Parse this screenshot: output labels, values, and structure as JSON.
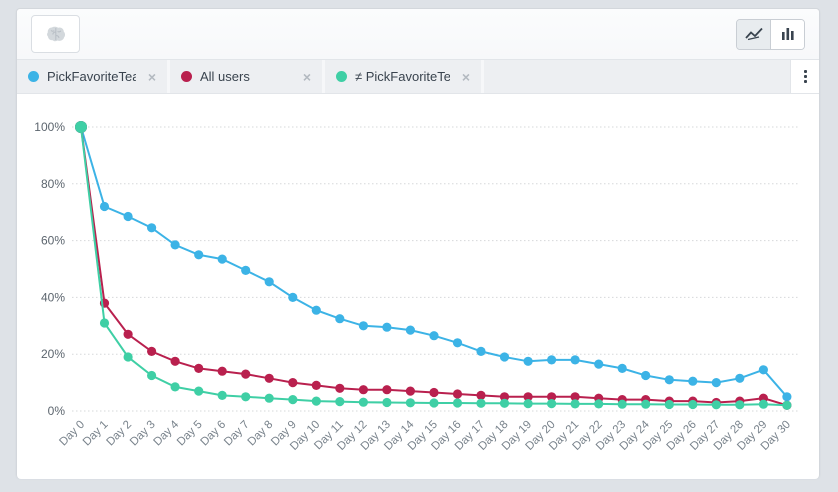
{
  "toolbar": {
    "brain_button_tooltip": "insights",
    "chart_type": {
      "selected": "line",
      "options": [
        "line-chart",
        "bar-chart"
      ]
    }
  },
  "icons": {
    "close": "×"
  },
  "colors": {
    "blue": "#3cb3e6",
    "crimson": "#b9204e",
    "green": "#3fcfa5",
    "grid": "#d6d8da",
    "y_tick_text": "#5c656e",
    "x_tick_text": "#78828b"
  },
  "filter_chips": [
    {
      "label": "PickFavoriteTeam",
      "color": "#3cb3e6"
    },
    {
      "label": "All users",
      "color": "#b9204e"
    },
    {
      "label": "≠ PickFavoriteTeam...",
      "color": "#3fcfa5"
    }
  ],
  "chart_data": {
    "type": "line",
    "title": "",
    "xlabel": "",
    "ylabel": "",
    "ylim": [
      0,
      100
    ],
    "grid": "dotted-horizontal",
    "legend_position": "chips-top",
    "y_tick_values": [
      0,
      20,
      40,
      60,
      80,
      100
    ],
    "y_tick_labels": [
      "0%",
      "20%",
      "40%",
      "60%",
      "80%",
      "100%"
    ],
    "categories": [
      "Day 0",
      "Day 1",
      "Day 2",
      "Day 3",
      "Day 4",
      "Day 5",
      "Day 6",
      "Day 7",
      "Day 8",
      "Day 9",
      "Day 10",
      "Day 11",
      "Day 12",
      "Day 13",
      "Day 14",
      "Day 15",
      "Day 16",
      "Day 17",
      "Day 18",
      "Day 19",
      "Day 20",
      "Day 21",
      "Day 22",
      "Day 23",
      "Day 24",
      "Day 25",
      "Day 26",
      "Day 27",
      "Day 28",
      "Day 29",
      "Day 30"
    ],
    "series": [
      {
        "name": "PickFavoriteTeam",
        "color": "#3cb3e6",
        "values": [
          100,
          72,
          68.5,
          64.5,
          58.5,
          55,
          53.5,
          49.5,
          45.5,
          40,
          35.5,
          32.5,
          30,
          29.5,
          28.5,
          26.5,
          24,
          21,
          19,
          17.5,
          18,
          18,
          16.5,
          15,
          12.5,
          11,
          10.5,
          10,
          11.5,
          14.5,
          5
        ]
      },
      {
        "name": "All users",
        "color": "#b9204e",
        "values": [
          100,
          38,
          27,
          21,
          17.5,
          15,
          14,
          13,
          11.5,
          10,
          9,
          8,
          7.5,
          7.5,
          7,
          6.5,
          6,
          5.5,
          5,
          5,
          5,
          5,
          4.5,
          4,
          4,
          3.5,
          3.5,
          3,
          3.5,
          4.5,
          2
        ]
      },
      {
        "name": "≠ PickFavoriteTeam...",
        "color": "#3fcfa5",
        "values": [
          100,
          31,
          19,
          12.5,
          8.5,
          7,
          5.5,
          5,
          4.5,
          4,
          3.5,
          3.3,
          3.1,
          3,
          2.9,
          2.8,
          2.8,
          2.7,
          2.7,
          2.6,
          2.6,
          2.5,
          2.5,
          2.4,
          2.4,
          2.3,
          2.3,
          2.2,
          2.2,
          2.4,
          2
        ]
      }
    ]
  }
}
